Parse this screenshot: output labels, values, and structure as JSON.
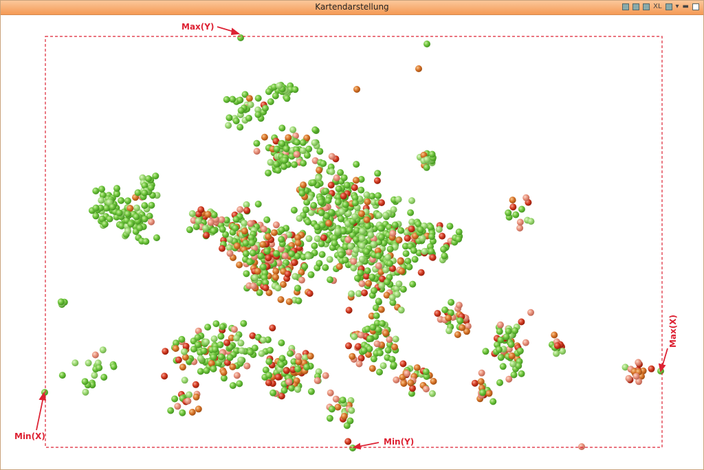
{
  "window": {
    "title": "Kartendarstellung",
    "toolbar": {
      "xl": "XL"
    }
  },
  "annotations": {
    "max_y": "Max(Y)",
    "min_x": "Min(X)",
    "max_x": "Max(X)",
    "min_y": "Min(Y)"
  }
}
